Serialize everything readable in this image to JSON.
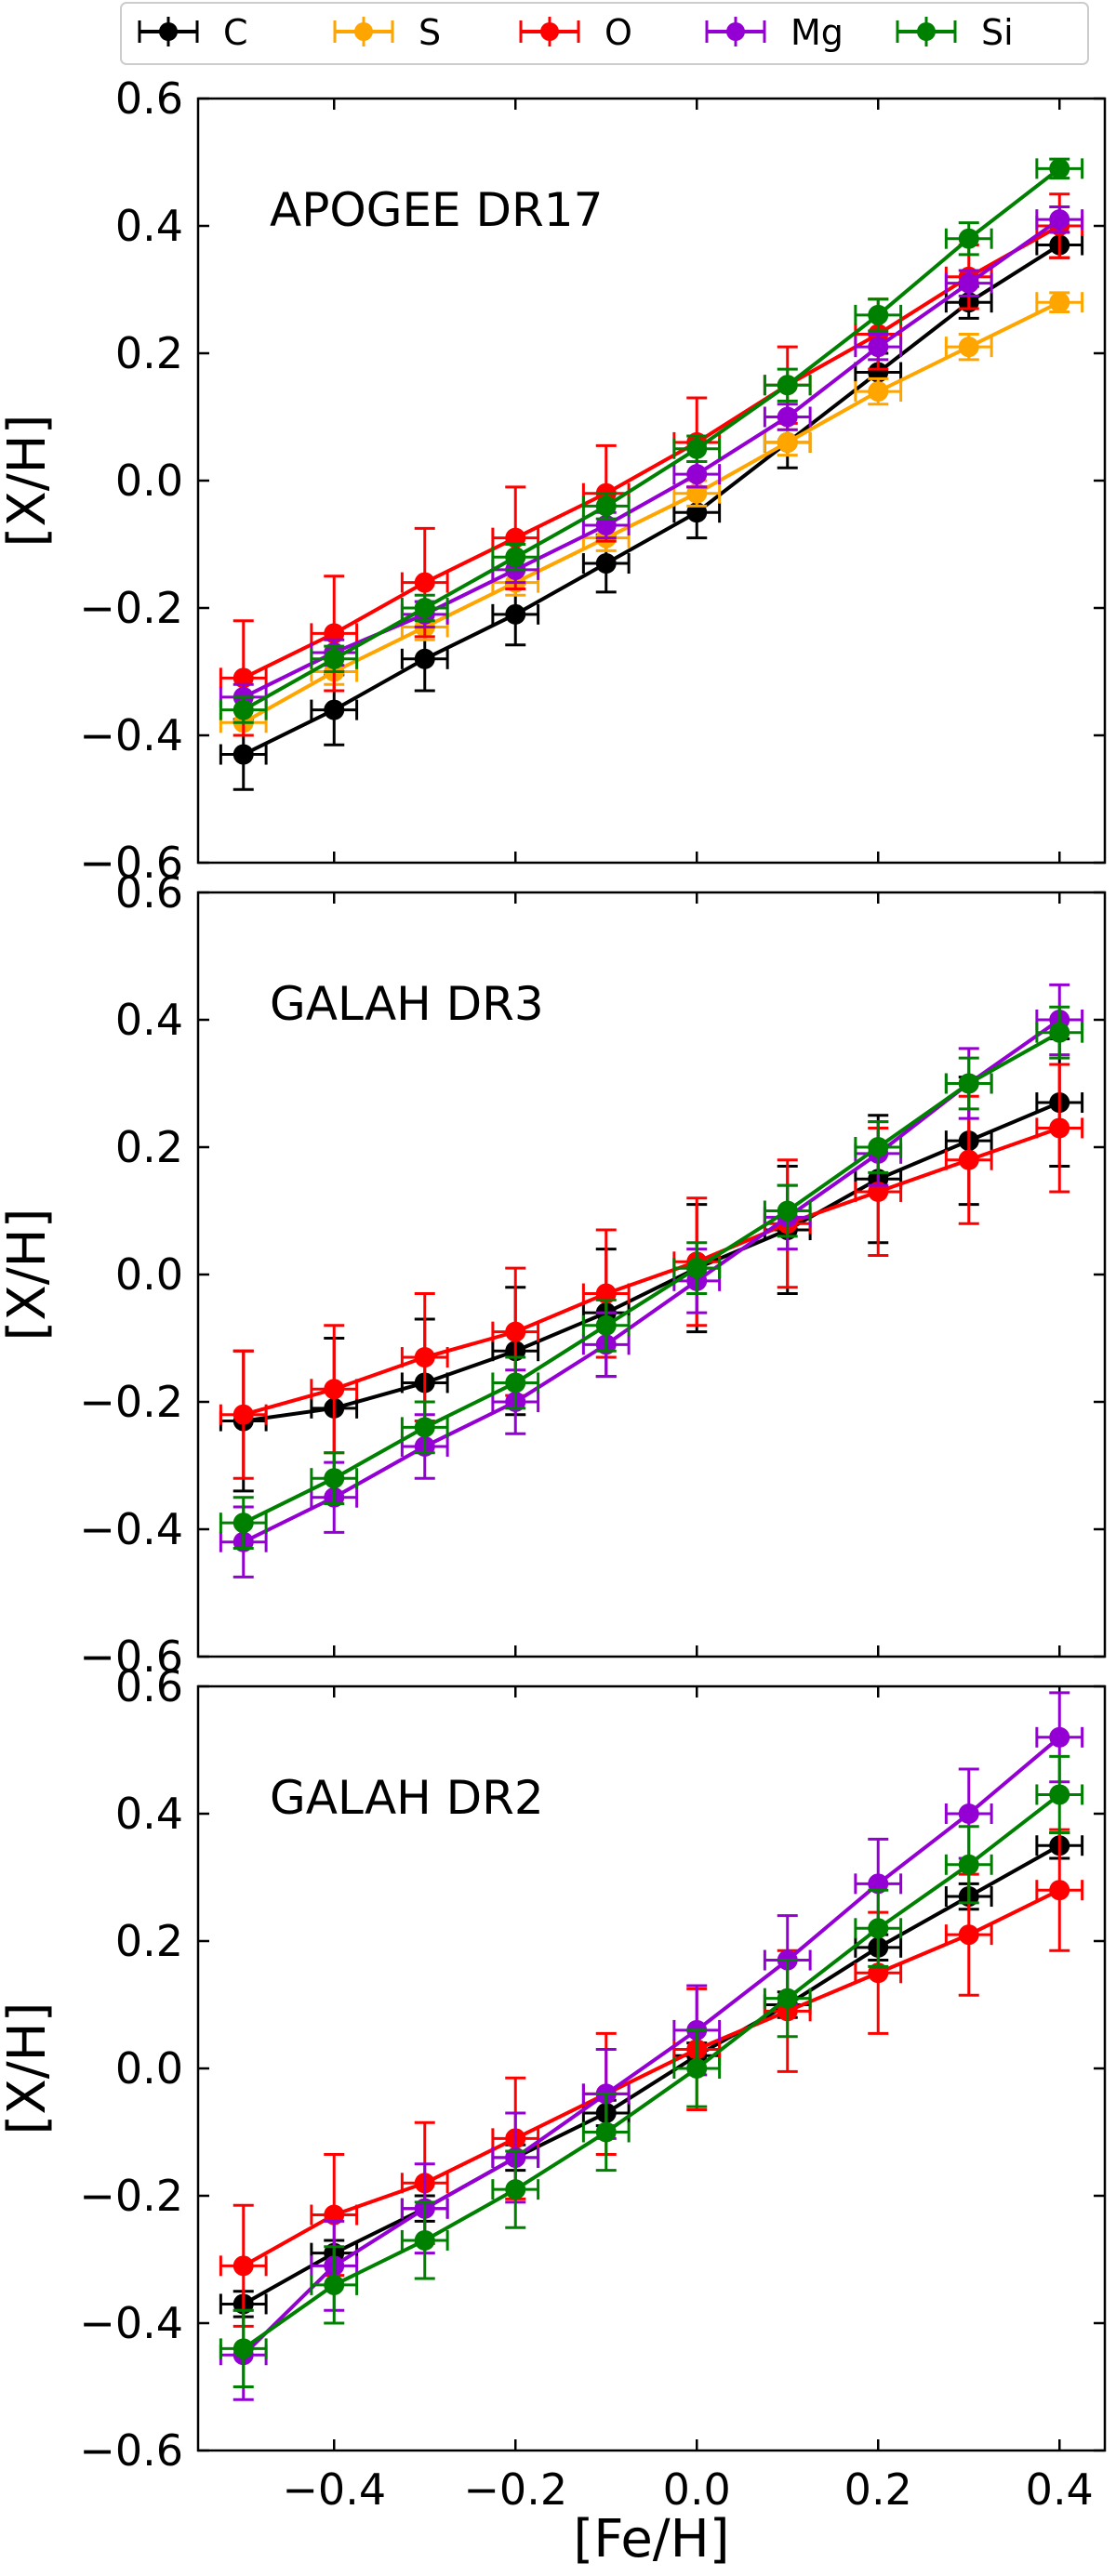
{
  "chart_data": {
    "type": "line",
    "x": [
      -0.5,
      -0.4,
      -0.3,
      -0.2,
      -0.1,
      0.0,
      0.1,
      0.2,
      0.3,
      0.4
    ],
    "xlabel": "[Fe/H]",
    "ylabel": "[X/H]",
    "xlim": [
      -0.55,
      0.45
    ],
    "ylim": [
      -0.6,
      0.6
    ],
    "xticks": [
      -0.4,
      -0.2,
      0.0,
      0.2,
      0.4
    ],
    "xtick_labels": [
      "−0.4",
      "−0.2",
      "0.0",
      "0.2",
      "0.4"
    ],
    "yticks": [
      -0.6,
      -0.4,
      -0.2,
      0.0,
      0.2,
      0.4,
      0.6
    ],
    "ytick_labels": [
      "−0.6",
      "−0.4",
      "−0.2",
      "0.0",
      "0.2",
      "0.4",
      "0.6"
    ],
    "x_error": 0.025,
    "legend": {
      "placement": "top",
      "entries": [
        {
          "name": "C",
          "color": "#000000"
        },
        {
          "name": "S",
          "color": "#FFA500"
        },
        {
          "name": "O",
          "color": "#FF0000"
        },
        {
          "name": "Mg",
          "color": "#9400D3"
        },
        {
          "name": "Si",
          "color": "#008000"
        }
      ]
    },
    "panels": [
      {
        "title": "APOGEE DR17",
        "series": [
          {
            "name": "C",
            "color": "#000000",
            "values": [
              -0.43,
              -0.36,
              -0.28,
              -0.21,
              -0.13,
              -0.05,
              0.06,
              0.17,
              0.28,
              0.37
            ],
            "errors": [
              0.055,
              0.055,
              0.05,
              0.048,
              0.045,
              0.04,
              0.04,
              0.03,
              0.025,
              0.02
            ]
          },
          {
            "name": "S",
            "color": "#FFA500",
            "values": [
              -0.38,
              -0.3,
              -0.23,
              -0.16,
              -0.09,
              -0.02,
              0.06,
              0.14,
              0.21,
              0.28
            ],
            "errors": [
              0.02,
              0.02,
              0.02,
              0.02,
              0.02,
              0.02,
              0.02,
              0.02,
              0.02,
              0.015
            ]
          },
          {
            "name": "O",
            "color": "#FF0000",
            "values": [
              -0.31,
              -0.24,
              -0.16,
              -0.09,
              -0.02,
              0.06,
              0.15,
              0.23,
              0.32,
              0.4
            ],
            "errors": [
              0.09,
              0.09,
              0.085,
              0.08,
              0.075,
              0.07,
              0.06,
              0.055,
              0.05,
              0.05
            ]
          },
          {
            "name": "Mg",
            "color": "#9400D3",
            "values": [
              -0.34,
              -0.27,
              -0.21,
              -0.14,
              -0.07,
              0.01,
              0.1,
              0.21,
              0.31,
              0.41
            ],
            "errors": [
              0.02,
              0.02,
              0.02,
              0.02,
              0.02,
              0.02,
              0.02,
              0.02,
              0.02,
              0.02
            ]
          },
          {
            "name": "Si",
            "color": "#008000",
            "values": [
              -0.36,
              -0.28,
              -0.2,
              -0.12,
              -0.04,
              0.05,
              0.15,
              0.26,
              0.38,
              0.49
            ],
            "errors": [
              0.02,
              0.02,
              0.02,
              0.02,
              0.02,
              0.02,
              0.025,
              0.025,
              0.025,
              0.015
            ]
          }
        ]
      },
      {
        "title": "GALAH DR3",
        "series": [
          {
            "name": "C",
            "color": "#000000",
            "values": [
              -0.23,
              -0.21,
              -0.17,
              -0.12,
              -0.06,
              0.01,
              0.07,
              0.15,
              0.21,
              0.27
            ],
            "errors": [
              0.11,
              0.11,
              0.1,
              0.1,
              0.1,
              0.1,
              0.1,
              0.1,
              0.1,
              0.1
            ]
          },
          {
            "name": "S",
            "color": "#FFA500",
            "values": [],
            "errors": []
          },
          {
            "name": "O",
            "color": "#FF0000",
            "values": [
              -0.22,
              -0.18,
              -0.13,
              -0.09,
              -0.03,
              0.02,
              0.08,
              0.13,
              0.18,
              0.23
            ],
            "errors": [
              0.1,
              0.1,
              0.1,
              0.1,
              0.1,
              0.1,
              0.1,
              0.1,
              0.1,
              0.1
            ]
          },
          {
            "name": "Mg",
            "color": "#9400D3",
            "values": [
              -0.42,
              -0.35,
              -0.27,
              -0.2,
              -0.11,
              -0.01,
              0.09,
              0.19,
              0.3,
              0.4
            ],
            "errors": [
              0.055,
              0.055,
              0.05,
              0.05,
              0.05,
              0.05,
              0.05,
              0.05,
              0.055,
              0.055
            ]
          },
          {
            "name": "Si",
            "color": "#008000",
            "values": [
              -0.39,
              -0.32,
              -0.24,
              -0.17,
              -0.08,
              0.01,
              0.1,
              0.2,
              0.3,
              0.38
            ],
            "errors": [
              0.04,
              0.04,
              0.04,
              0.04,
              0.04,
              0.04,
              0.04,
              0.04,
              0.04,
              0.04
            ]
          }
        ]
      },
      {
        "title": "GALAH DR2",
        "series": [
          {
            "name": "C",
            "color": "#000000",
            "values": [
              -0.37,
              -0.29,
              -0.22,
              -0.14,
              -0.07,
              0.02,
              0.1,
              0.19,
              0.27,
              0.35
            ],
            "errors": [
              0.02,
              0.02,
              0.02,
              0.02,
              0.02,
              0.02,
              0.02,
              0.02,
              0.02,
              0.02
            ]
          },
          {
            "name": "S",
            "color": "#FFA500",
            "values": [],
            "errors": []
          },
          {
            "name": "O",
            "color": "#FF0000",
            "values": [
              -0.31,
              -0.23,
              -0.18,
              -0.11,
              -0.04,
              0.03,
              0.09,
              0.15,
              0.21,
              0.28
            ],
            "errors": [
              0.095,
              0.095,
              0.095,
              0.095,
              0.095,
              0.095,
              0.095,
              0.095,
              0.095,
              0.095
            ]
          },
          {
            "name": "Mg",
            "color": "#9400D3",
            "values": [
              -0.45,
              -0.31,
              -0.22,
              -0.14,
              -0.04,
              0.06,
              0.17,
              0.29,
              0.4,
              0.52
            ],
            "errors": [
              0.07,
              0.07,
              0.07,
              0.07,
              0.07,
              0.07,
              0.07,
              0.07,
              0.07,
              0.07
            ]
          },
          {
            "name": "Si",
            "color": "#008000",
            "values": [
              -0.44,
              -0.34,
              -0.27,
              -0.19,
              -0.1,
              0.0,
              0.11,
              0.22,
              0.32,
              0.43
            ],
            "errors": [
              0.06,
              0.06,
              0.06,
              0.06,
              0.06,
              0.06,
              0.06,
              0.06,
              0.06,
              0.06
            ]
          }
        ]
      }
    ]
  }
}
